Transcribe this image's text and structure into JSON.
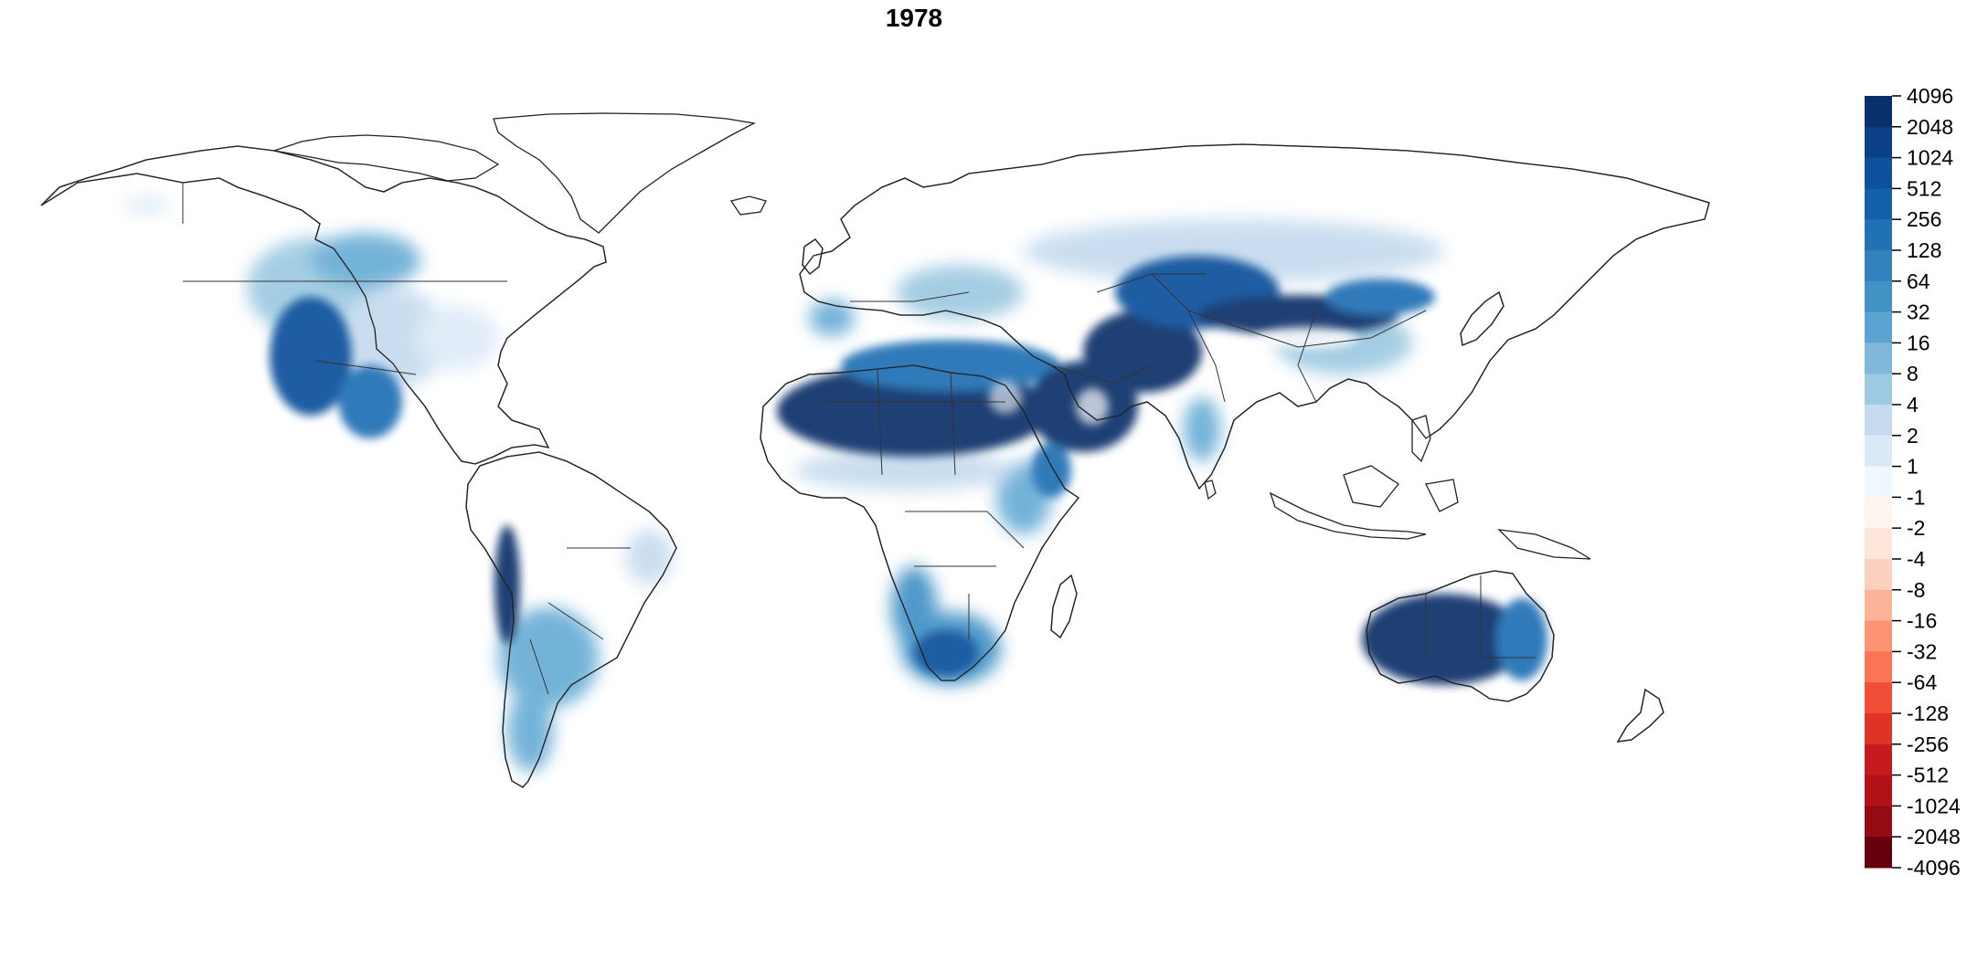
{
  "map": {
    "title": "1978",
    "legend": {
      "labels": [
        "4096",
        "2048",
        "1024",
        "512",
        "256",
        "128",
        "64",
        "32",
        "16",
        "8",
        "4",
        "2",
        "1",
        "-1",
        "-2",
        "-4",
        "-8",
        "-16",
        "-32",
        "-64",
        "-128",
        "-256",
        "-512",
        "-1024",
        "-2048",
        "-4096"
      ],
      "colors": [
        "#08306b",
        "#0b3f86",
        "#0d509b",
        "#1361a9",
        "#2171b5",
        "#3282be",
        "#4292c6",
        "#5ba3d0",
        "#7fb8da",
        "#9ecae1",
        "#c6dbef",
        "#dbe9f6",
        "#f0f7fd",
        "#fff5f0",
        "#fee6da",
        "#fdd1bf",
        "#fcb499",
        "#fc9474",
        "#fb7555",
        "#f14e38",
        "#e03327",
        "#c71a1e",
        "#b11218",
        "#940b13",
        "#67000d"
      ]
    },
    "colors": {
      "high_blue": "#08306b",
      "mid_blue": "#4292c6",
      "light_blue": "#c6dbef",
      "outline": "#222222"
    }
  }
}
